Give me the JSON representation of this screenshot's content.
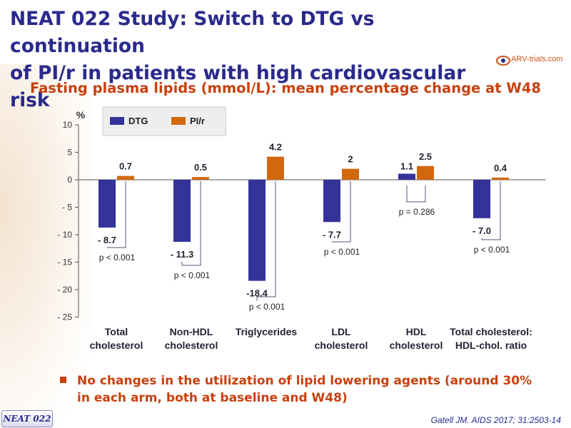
{
  "header": {
    "title_line1": "NEAT 022 Study: Switch to DTG vs continuation",
    "title_line2": "of PI/r in patients with high cardiovascular risk",
    "logo_text": "ARV-trials.com"
  },
  "subtitle": "Fasting plasma lipids (mmol/L): mean percentage change at W48",
  "bullet": "No changes in the utilization of lipid lowering agents (around 30% in each arm, both at baseline and W48)",
  "footer": {
    "badge": "NEAT 022",
    "citation": "Gatell JM. AIDS 2017; 31:2503-14"
  },
  "colors": {
    "dtg": "#33339a",
    "pir": "#d2680e",
    "title": "#2a2a8c",
    "accent": "#c8400e"
  },
  "chart_data": {
    "type": "bar",
    "ylabel": "%",
    "ylim": [
      -25,
      10
    ],
    "yticks": [
      "10",
      "5",
      "0",
      "- 5",
      "- 10",
      "- 15",
      "- 20",
      "- 25"
    ],
    "ytick_values": [
      10,
      5,
      0,
      -5,
      -10,
      -15,
      -20,
      -25
    ],
    "categories": [
      [
        "Total",
        "cholesterol"
      ],
      [
        "Non-HDL",
        "cholesterol"
      ],
      [
        "Triglycerides"
      ],
      [
        "LDL",
        "cholesterol"
      ],
      [
        "HDL",
        "cholesterol"
      ],
      [
        "Total cholesterol:",
        "HDL-chol. ratio"
      ]
    ],
    "series": [
      {
        "name": "DTG",
        "values": [
          -8.7,
          -11.3,
          -18.4,
          -7.7,
          1.1,
          -7.0
        ],
        "labels": [
          "- 8.7",
          "- 11.3",
          "-18.4",
          "- 7.7",
          "1.1",
          "- 7.0"
        ]
      },
      {
        "name": "PI/r",
        "values": [
          0.7,
          0.5,
          4.2,
          2,
          2.5,
          0.4
        ],
        "labels": [
          "0.7",
          "0.5",
          "4.2",
          "2",
          "2.5",
          "0.4"
        ]
      }
    ],
    "pvalues": [
      "p < 0.001",
      "p < 0.001",
      "p < 0.001",
      "p < 0.001",
      "p = 0.286",
      "p < 0.001"
    ],
    "legend": "top-left"
  }
}
